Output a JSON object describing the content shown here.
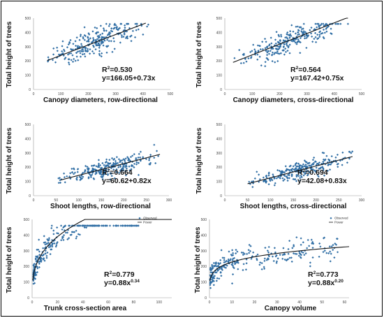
{
  "chart_data": [
    {
      "type": "scatter",
      "xlabel": "Canopy diameters, row-directional",
      "ylabel": "Total height of trees",
      "xlim": [
        0,
        500
      ],
      "ylim": [
        0,
        500
      ],
      "xticks": [
        0,
        100,
        200,
        300,
        400,
        500
      ],
      "yticks": [
        0,
        100,
        200,
        300,
        400,
        500
      ],
      "fit": {
        "model": "linear",
        "intercept": 166.05,
        "slope": 0.73,
        "x_range": [
          50,
          410
        ]
      },
      "r2_text": "0.530",
      "equation_text": "y=166.05+0.73x",
      "point_spread": {
        "x_range": [
          50,
          420
        ],
        "sd": 45
      }
    },
    {
      "type": "scatter",
      "xlabel": "Canopy diameters, cross-directional",
      "ylabel": "Total height of trees",
      "xlim": [
        0,
        500
      ],
      "ylim": [
        0,
        500
      ],
      "xticks": [
        0,
        100,
        200,
        300,
        400,
        500
      ],
      "yticks": [
        0,
        100,
        200,
        300,
        400,
        500
      ],
      "fit": {
        "model": "linear",
        "intercept": 167.42,
        "slope": 0.75,
        "x_range": [
          30,
          450
        ]
      },
      "r2_text": "0.564",
      "equation_text": "y=167.42+0.75x",
      "point_spread": {
        "x_range": [
          30,
          450
        ],
        "sd": 45
      }
    },
    {
      "type": "scatter",
      "xlabel": "Shoot lengths, row-directional",
      "ylabel": "Total height of trees",
      "xlim": [
        0,
        300
      ],
      "ylim": [
        0,
        500
      ],
      "xticks": [
        0,
        50,
        100,
        150,
        200,
        250,
        300
      ],
      "yticks": [
        0,
        100,
        200,
        300,
        400,
        500
      ],
      "fit": {
        "model": "linear",
        "intercept": 60.62,
        "slope": 0.82,
        "x_range": [
          60,
          280
        ]
      },
      "r2_text": "0.664",
      "equation_text": "y=60.62+0.82x",
      "point_spread": {
        "x_range": [
          50,
          280
        ],
        "sd": 30
      }
    },
    {
      "type": "scatter",
      "xlabel": "Shoot lengths, cross-directional",
      "ylabel": "Total height of trees",
      "xlim": [
        0,
        300
      ],
      "ylim": [
        0,
        500
      ],
      "xticks": [
        0,
        50,
        100,
        150,
        200,
        250,
        300
      ],
      "yticks": [
        0,
        100,
        200,
        300,
        400,
        500
      ],
      "fit": {
        "model": "linear",
        "intercept": 42.08,
        "slope": 0.83,
        "x_range": [
          50,
          280
        ]
      },
      "r2_text": "0.694",
      "equation_text": "y=42.08+0.83x",
      "point_spread": {
        "x_range": [
          50,
          280
        ],
        "sd": 30
      }
    },
    {
      "type": "scatter",
      "xlabel": "Trunk cross-section area",
      "ylabel": "Total height of trees",
      "xlim": [
        0,
        110
      ],
      "ylim": [
        0,
        500
      ],
      "xticks": [
        0,
        20,
        40,
        60,
        80,
        100
      ],
      "yticks": [
        0,
        100,
        200,
        300,
        400,
        500
      ],
      "fit": {
        "model": "power",
        "coefficient": 0.88,
        "exponent": 0.34,
        "x_range": [
          0.5,
          110
        ]
      },
      "r2_text": "0.779",
      "equation_base": "y=0.88x",
      "equation_exp": "0.34",
      "legend": {
        "position": "top-right",
        "entries": [
          "Observed",
          "Power"
        ]
      },
      "point_spread": {
        "x_range": [
          1,
          85
        ],
        "sd": 38
      }
    },
    {
      "type": "scatter",
      "xlabel": "Canopy volume",
      "ylabel": "Total height of trees",
      "xlim": [
        0,
        62
      ],
      "ylim": [
        0,
        500
      ],
      "xticks": [
        0,
        10,
        20,
        30,
        40,
        50,
        60
      ],
      "yticks": [
        0,
        100,
        200,
        300,
        400,
        500
      ],
      "fit": {
        "model": "power",
        "coefficient": 0.88,
        "exponent": 0.2,
        "x_range": [
          0.2,
          62
        ]
      },
      "r2_text": "0.773",
      "equation_base": "y=0.88x",
      "equation_exp": "0.20",
      "legend": {
        "position": "top-right",
        "entries": [
          "Observed",
          "Power"
        ]
      },
      "point_spread": {
        "x_range": [
          0.3,
          57
        ],
        "sd": 38
      }
    }
  ],
  "style": {
    "point_color": "#2e6da4",
    "fit_color": "#111111"
  }
}
